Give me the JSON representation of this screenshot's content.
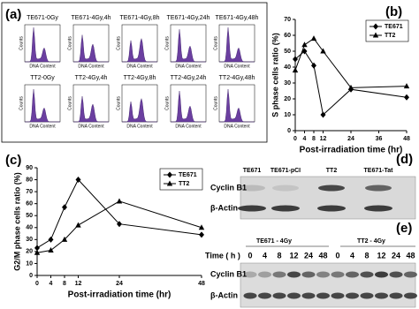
{
  "panel_a": {
    "label": "(a)",
    "row1": [
      "TE671-0Gy",
      "TE671-4Gy,4h",
      "TE671-4Gy,8h",
      "TE671-4Gy,24h",
      "TE671-4Gy,48h"
    ],
    "row2": [
      "TT2-0Gy",
      "TT2-4Gy,4h",
      "TT2-4Gy,8h",
      "TT2-4Gy,24h",
      "TT2-4Gy,48h"
    ],
    "x_axis": "DNA Content",
    "y_axis": "Counts"
  },
  "chart_data": [
    {
      "type": "line",
      "panel_label": "(b)",
      "x_label": "Post-irradiation time (hr)",
      "y_label": "S phase cells ratio (%)",
      "x": [
        0,
        4,
        8,
        12,
        24,
        48
      ],
      "series": [
        {
          "name": "TE671",
          "color": "#000000",
          "marker": "diamond",
          "values": [
            45,
            50,
            41,
            10,
            26,
            21
          ]
        },
        {
          "name": "TT2",
          "color": "#000000",
          "marker": "triangle",
          "values": [
            38,
            54,
            58,
            50,
            27,
            28
          ]
        }
      ],
      "xlim": [
        0,
        48
      ],
      "xticks": [
        0,
        4,
        8,
        12,
        24,
        36,
        48
      ],
      "ylim": [
        0,
        70
      ],
      "yticks": [
        0,
        10,
        20,
        30,
        40,
        50,
        60,
        70
      ],
      "legend": "upper right"
    },
    {
      "type": "line",
      "panel_label": "(c)",
      "x_label": "Post-irradiation time (hr)",
      "y_label": "G2/M phase cells ratio (%)",
      "x": [
        0,
        4,
        8,
        12,
        24,
        48
      ],
      "series": [
        {
          "name": "TE671",
          "color": "#000000",
          "marker": "diamond",
          "values": [
            23,
            30,
            57,
            80,
            43,
            34
          ]
        },
        {
          "name": "TT2",
          "color": "#000000",
          "marker": "triangle",
          "values": [
            19,
            21,
            30,
            42,
            62,
            40
          ]
        }
      ],
      "xlim": [
        0,
        48
      ],
      "xticks": [
        0,
        4,
        8,
        12,
        24,
        48
      ],
      "ylim": [
        0,
        90
      ],
      "yticks": [
        0,
        10,
        20,
        30,
        40,
        50,
        60,
        70,
        80,
        90
      ],
      "legend": "upper right"
    }
  ],
  "panel_d": {
    "label": "(d)",
    "columns": [
      "TE671",
      "TE671-pCI",
      "TT2",
      "TE671-Tat"
    ],
    "rows": [
      "Cyclin B1",
      "β-Actin"
    ]
  },
  "panel_e": {
    "label": "(e)",
    "groups": [
      "TE671 - 4Gy",
      "TT2 - 4Gy"
    ],
    "time_label": "Time ( h )",
    "times": [
      0,
      4,
      8,
      12,
      24,
      48,
      0,
      4,
      8,
      12,
      24,
      48
    ],
    "rows": [
      "Cyclin B1",
      "β-Actin"
    ]
  }
}
